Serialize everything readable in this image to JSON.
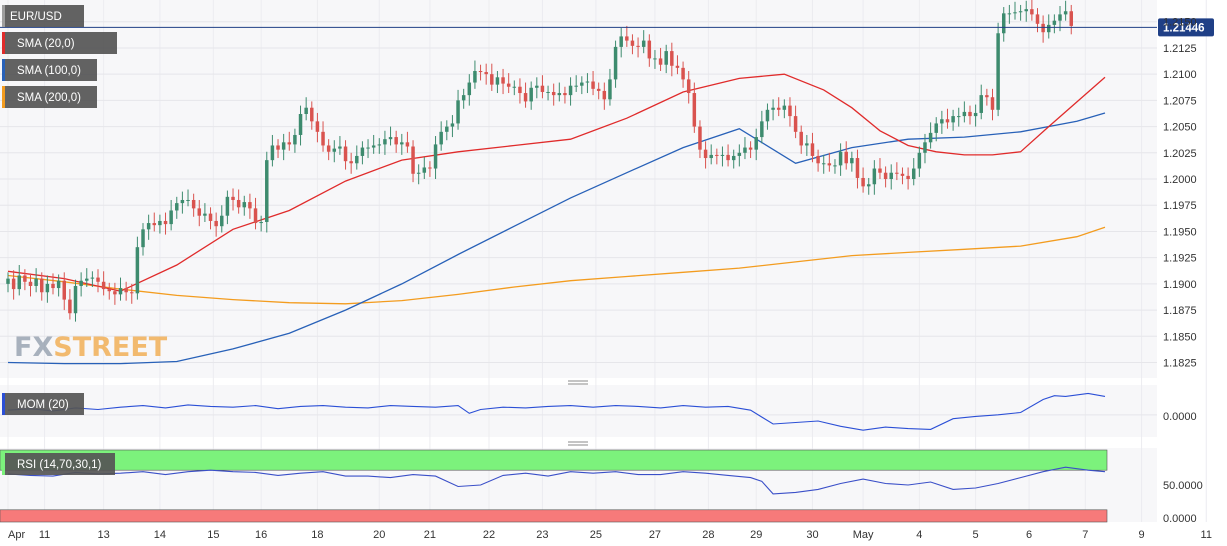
{
  "brand": {
    "fx": "FX",
    "street": "STREET"
  },
  "colors": {
    "up": "#3d8b6e",
    "down": "#d9534f",
    "sma20": "#e02b2b",
    "sma100": "#2861b8",
    "sma200": "#f39c1f",
    "mom": "#2b4fd6",
    "rsi": "#3a4fc8",
    "rsi_high": "#7cf27c",
    "rsi_low": "#f77a7a",
    "price_line": "#1f3f86"
  },
  "legend": {
    "symbol": "EUR/USD",
    "sma20": "SMA (20,0)",
    "sma100": "SMA (100,0)",
    "sma200": "SMA (200,0)",
    "mom": "MOM (20)",
    "rsi": "RSI (14,70,30,1)"
  },
  "current_price": {
    "value": 1.21446,
    "label": "1.21446"
  },
  "x_axis": {
    "labels": [
      "Apr",
      "11",
      "13",
      "14",
      "15",
      "16",
      "18",
      "20",
      "21",
      "22",
      "23",
      "25",
      "27",
      "28",
      "29",
      "30",
      "May",
      "4",
      "5",
      "6",
      "7",
      "9",
      "11"
    ],
    "label_positions": [
      0,
      6.5,
      17,
      27,
      36.5,
      45,
      55,
      66,
      75,
      85.5,
      95,
      104.5,
      115,
      124.5,
      133,
      143,
      152,
      162,
      172,
      181.5,
      191.5,
      201.5,
      213
    ]
  },
  "mom_axis": {
    "ticks": [
      "0.0000"
    ]
  },
  "rsi_axis": {
    "ticks": [
      "50.0000",
      "0.0000"
    ]
  },
  "chart_data": [
    {
      "type": "candlestick",
      "title": "EUR/USD",
      "ylim": [
        1.1815,
        1.2165
      ],
      "y_ticks": [
        1.1825,
        1.185,
        1.1875,
        1.19,
        1.1925,
        1.195,
        1.1975,
        1.2,
        1.2025,
        1.205,
        1.2075,
        1.21,
        1.2125,
        1.215
      ],
      "y_tick_labels": [
        "1.1825",
        "1.1850",
        "1.1875",
        "1.1900",
        "1.1925",
        "1.1950",
        "1.1975",
        "1.2000",
        "1.2025",
        "1.2050",
        "1.2075",
        "1.2100",
        "1.2125",
        "1.2150"
      ],
      "grid": true,
      "close": [
        1.1905,
        1.1895,
        1.1908,
        1.1902,
        1.1898,
        1.1905,
        1.1892,
        1.19,
        1.1896,
        1.1903,
        1.1885,
        1.1872,
        1.1898,
        1.1903,
        1.1905,
        1.1906,
        1.1902,
        1.1895,
        1.1893,
        1.189,
        1.1896,
        1.1892,
        1.1891,
        1.1935,
        1.1952,
        1.1958,
        1.1956,
        1.196,
        1.1957,
        1.197,
        1.1977,
        1.198,
        1.198,
        1.1972,
        1.1965,
        1.1967,
        1.196,
        1.1955,
        1.1965,
        1.1983,
        1.198,
        1.1973,
        1.1978,
        1.1972,
        1.1958,
        1.1959,
        1.2018,
        1.2032,
        1.2028,
        1.2035,
        1.2033,
        1.2042,
        1.2062,
        1.2068,
        1.2055,
        1.2045,
        1.2032,
        1.2026,
        1.2029,
        1.2031,
        1.2017,
        1.2015,
        1.2022,
        1.203,
        1.203,
        1.2032,
        1.2033,
        1.2038,
        1.204,
        1.2033,
        1.2035,
        1.2031,
        1.2005,
        1.2006,
        1.2011,
        1.201,
        1.2033,
        1.2045,
        1.205,
        1.2053,
        1.2075,
        1.208,
        1.2092,
        1.2103,
        1.2102,
        1.21,
        1.209,
        1.2097,
        1.2091,
        1.2088,
        1.2088,
        1.2082,
        1.2074,
        1.2087,
        1.2089,
        1.2083,
        1.2083,
        1.208,
        1.2082,
        1.208,
        1.2089,
        1.2089,
        1.2092,
        1.2093,
        1.2086,
        1.2084,
        1.2076,
        1.2095,
        1.2126,
        1.2136,
        1.2132,
        1.2127,
        1.2126,
        1.2132,
        1.2115,
        1.2115,
        1.2109,
        1.2122,
        1.2108,
        1.2106,
        1.2095,
        1.2082,
        1.205,
        1.2028,
        1.202,
        1.2023,
        1.2022,
        1.2023,
        1.2018,
        1.2022,
        1.2025,
        1.203,
        1.2028,
        1.204,
        1.2055,
        1.2066,
        1.2068,
        1.2066,
        1.207,
        1.206,
        1.2045,
        1.2032,
        1.2034,
        1.2022,
        1.2015,
        1.2015,
        1.2013,
        1.2013,
        1.2026,
        1.2015,
        1.202,
        1.2001,
        1.1993,
        1.1995,
        1.201,
        1.2006,
        1.2,
        1.2006,
        1.2005,
        1.2003,
        1.2,
        1.201,
        1.2025,
        1.2035,
        1.2044,
        1.2053,
        1.2057,
        1.2054,
        1.206,
        1.206,
        1.2064,
        1.206,
        1.2063,
        1.208,
        1.2078,
        1.2066,
        1.2139,
        1.2158,
        1.2158,
        1.2159,
        1.216,
        1.2162,
        1.2157,
        1.2148,
        1.214,
        1.2147,
        1.2151,
        1.2157,
        1.216,
        1.2146
      ],
      "open": [
        1.19,
        1.1905,
        1.1895,
        1.1908,
        1.1902,
        1.1898,
        1.1905,
        1.1892,
        1.19,
        1.1896,
        1.1903,
        1.1885,
        1.1872,
        1.1898,
        1.1903,
        1.1905,
        1.1906,
        1.1902,
        1.1895,
        1.1893,
        1.189,
        1.1896,
        1.1892,
        1.1891,
        1.1935,
        1.1952,
        1.1958,
        1.1956,
        1.196,
        1.1957,
        1.197,
        1.1977,
        1.198,
        1.198,
        1.1972,
        1.1965,
        1.1967,
        1.196,
        1.1955,
        1.1965,
        1.1983,
        1.198,
        1.1973,
        1.1978,
        1.1972,
        1.1958,
        1.1959,
        1.2018,
        1.2032,
        1.2028,
        1.2035,
        1.2033,
        1.2042,
        1.2062,
        1.2068,
        1.2055,
        1.2045,
        1.2032,
        1.2026,
        1.2029,
        1.2031,
        1.2017,
        1.2015,
        1.2022,
        1.203,
        1.203,
        1.2032,
        1.2033,
        1.2038,
        1.204,
        1.2033,
        1.2035,
        1.2031,
        1.2005,
        1.2006,
        1.2011,
        1.201,
        1.2033,
        1.2045,
        1.205,
        1.2053,
        1.2075,
        1.208,
        1.2092,
        1.2103,
        1.2102,
        1.21,
        1.209,
        1.2097,
        1.2091,
        1.2088,
        1.2088,
        1.2082,
        1.2074,
        1.2087,
        1.2089,
        1.2083,
        1.2083,
        1.208,
        1.2082,
        1.208,
        1.2089,
        1.2089,
        1.2092,
        1.2093,
        1.2086,
        1.2084,
        1.2076,
        1.2095,
        1.2126,
        1.2136,
        1.2132,
        1.2127,
        1.2126,
        1.2132,
        1.2115,
        1.2115,
        1.2109,
        1.2122,
        1.2108,
        1.2106,
        1.2095,
        1.2082,
        1.205,
        1.2028,
        1.202,
        1.2023,
        1.2022,
        1.2023,
        1.2018,
        1.2022,
        1.2025,
        1.203,
        1.2028,
        1.204,
        1.2055,
        1.2066,
        1.2068,
        1.2066,
        1.207,
        1.206,
        1.2045,
        1.2032,
        1.2034,
        1.2022,
        1.2015,
        1.2015,
        1.2013,
        1.2013,
        1.2026,
        1.2015,
        1.202,
        1.2001,
        1.1993,
        1.1995,
        1.201,
        1.2006,
        1.2,
        1.2006,
        1.2005,
        1.2003,
        1.2,
        1.201,
        1.2025,
        1.2035,
        1.2044,
        1.2053,
        1.2057,
        1.2054,
        1.206,
        1.206,
        1.2064,
        1.206,
        1.2063,
        1.208,
        1.2078,
        1.2066,
        1.2139,
        1.2158,
        1.2158,
        1.2159,
        1.216,
        1.2162,
        1.2157,
        1.2148,
        1.214,
        1.2147,
        1.2151,
        1.2157,
        1.216
      ],
      "sma20": {
        "name": "SMA (20,0)",
        "x": [
          0,
          10,
          20,
          30,
          40,
          50,
          60,
          70,
          80,
          90,
          100,
          110,
          120,
          130,
          138,
          145,
          150,
          155,
          160,
          165,
          170,
          175,
          180,
          185,
          195
        ],
        "y": [
          1.1912,
          1.1905,
          1.1893,
          1.1918,
          1.1952,
          1.197,
          1.1998,
          1.2018,
          1.2026,
          1.2032,
          1.2038,
          1.2058,
          1.2083,
          1.2096,
          1.21,
          1.2085,
          1.2068,
          1.2046,
          1.2032,
          1.2026,
          1.2023,
          1.2023,
          1.2026,
          1.205,
          1.2097
        ]
      },
      "sma100": {
        "name": "SMA (100,0)",
        "x": [
          0,
          10,
          20,
          30,
          40,
          50,
          60,
          70,
          80,
          90,
          100,
          110,
          120,
          130,
          140,
          150,
          160,
          170,
          180,
          190,
          195
        ],
        "y": [
          1.1825,
          1.1824,
          1.1824,
          1.1826,
          1.1838,
          1.1853,
          1.1875,
          1.19,
          1.1928,
          1.1955,
          1.1982,
          1.2006,
          1.203,
          1.2048,
          1.2015,
          1.203,
          1.2038,
          1.204,
          1.2045,
          1.2055,
          1.2063
        ]
      },
      "sma200": {
        "name": "SMA (200,0)",
        "x": [
          0,
          10,
          20,
          30,
          40,
          50,
          60,
          70,
          80,
          90,
          100,
          110,
          120,
          130,
          140,
          150,
          160,
          170,
          180,
          190,
          195
        ],
        "y": [
          1.1908,
          1.1902,
          1.1895,
          1.1889,
          1.1885,
          1.1882,
          1.1881,
          1.1884,
          1.189,
          1.1897,
          1.1903,
          1.1907,
          1.1911,
          1.1915,
          1.1921,
          1.1927,
          1.193,
          1.1933,
          1.1936,
          1.1945,
          1.1954
        ]
      }
    },
    {
      "type": "line",
      "title": "MOM (20)",
      "ylim": [
        -0.0025,
        0.0035
      ],
      "x": [
        0,
        4,
        8,
        12,
        16,
        20,
        24,
        28,
        32,
        36,
        40,
        44,
        48,
        52,
        56,
        60,
        64,
        68,
        72,
        76,
        80,
        82,
        84,
        88,
        92,
        96,
        100,
        104,
        108,
        112,
        116,
        120,
        124,
        128,
        132,
        136,
        140,
        144,
        148,
        152,
        156,
        160,
        164,
        168,
        172,
        176,
        180,
        184,
        186,
        188,
        192,
        195
      ],
      "y": [
        0.0006,
        0.0008,
        0.0005,
        0.0009,
        0.0007,
        0.001,
        0.0012,
        0.0009,
        0.0013,
        0.0011,
        0.001,
        0.0012,
        0.0008,
        0.0011,
        0.0012,
        0.001,
        0.0009,
        0.0012,
        0.0011,
        0.001,
        0.0012,
        0.0002,
        0.0007,
        0.001,
        0.0009,
        0.0011,
        0.0012,
        0.001,
        0.0012,
        0.0011,
        0.0009,
        0.0012,
        0.001,
        0.0011,
        0.0006,
        -0.0012,
        -0.001,
        -0.0008,
        -0.0015,
        -0.002,
        -0.0016,
        -0.0018,
        -0.0019,
        -0.0005,
        -0.0002,
        0.0,
        0.0003,
        0.002,
        0.0025,
        0.0024,
        0.0028,
        0.0024
      ]
    },
    {
      "type": "line",
      "title": "RSI (14,70,30,1)",
      "ylim": [
        0,
        100
      ],
      "bands": {
        "overbought": 70,
        "oversold": 30
      },
      "x": [
        0,
        4,
        8,
        12,
        16,
        20,
        24,
        28,
        32,
        36,
        40,
        44,
        48,
        52,
        56,
        60,
        64,
        68,
        72,
        76,
        80,
        84,
        88,
        92,
        96,
        100,
        104,
        108,
        112,
        116,
        120,
        124,
        128,
        132,
        134,
        136,
        140,
        144,
        148,
        152,
        156,
        160,
        164,
        168,
        172,
        176,
        180,
        184,
        188,
        192,
        195
      ],
      "y": [
        65,
        63,
        62,
        67,
        65,
        66,
        68,
        64,
        68,
        70,
        68,
        67,
        63,
        66,
        68,
        62,
        62,
        60,
        64,
        62,
        48,
        50,
        63,
        66,
        62,
        68,
        66,
        68,
        64,
        64,
        68,
        66,
        63,
        60,
        55,
        38,
        40,
        44,
        52,
        58,
        52,
        50,
        54,
        44,
        46,
        52,
        60,
        68,
        74,
        70,
        68
      ]
    }
  ]
}
